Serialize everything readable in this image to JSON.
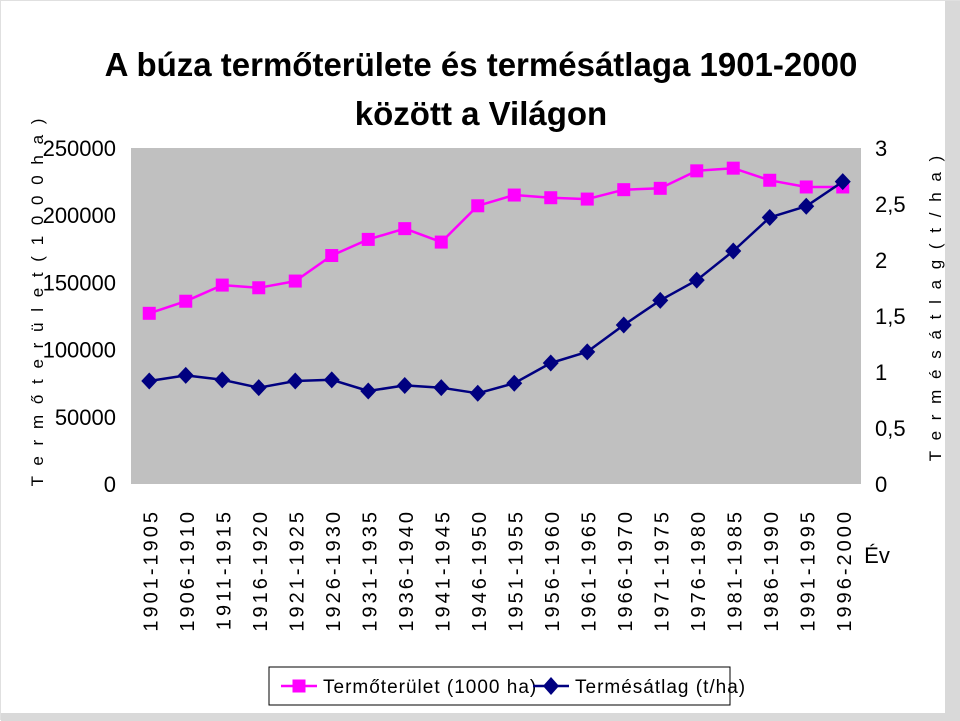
{
  "chart_data": {
    "type": "line",
    "title_line1": "A búza termőterülete és termésátlaga 1901-2000",
    "title_line2": "között a Világon",
    "ylabel_left": "T e r m ő t e r ü l e t   ( 1 0 0 0  h a )",
    "ylabel_right": "T e r m é s á t l a g  ( t / h a )",
    "xlabel": "Év",
    "categories": [
      "1901-1905",
      "1906-1910",
      "1911-1915",
      "1916-1920",
      "1921-1925",
      "1926-1930",
      "1931-1935",
      "1936-1940",
      "1941-1945",
      "1946-1950",
      "1951-1955",
      "1956-1960",
      "1961-1965",
      "1966-1970",
      "1971-1975",
      "1976-1980",
      "1981-1985",
      "1986-1990",
      "1991-1995",
      "1996-2000"
    ],
    "ylim_left": [
      0,
      250000
    ],
    "yticks_left": [
      "0",
      "50000",
      "100000",
      "150000",
      "200000",
      "250000"
    ],
    "ylim_right": [
      0,
      3
    ],
    "yticks_right": [
      "0",
      "0,5",
      "1",
      "1,5",
      "2",
      "2,5",
      "3"
    ],
    "series": [
      {
        "name": "Termőterület (1000 ha)",
        "axis": "left",
        "color": "#ff00ff",
        "marker": "square",
        "values": [
          127000,
          136000,
          148000,
          146000,
          151000,
          170000,
          182000,
          190000,
          180000,
          207000,
          215000,
          213000,
          212000,
          219000,
          220000,
          233000,
          235000,
          226000,
          221000,
          221000
        ]
      },
      {
        "name": "Termésátlag (t/ha)",
        "axis": "right",
        "color": "#000080",
        "marker": "diamond",
        "values": [
          0.92,
          0.97,
          0.93,
          0.86,
          0.92,
          0.93,
          0.83,
          0.88,
          0.86,
          0.81,
          0.9,
          1.08,
          1.18,
          1.42,
          1.64,
          1.82,
          2.08,
          2.38,
          2.48,
          2.7
        ]
      }
    ],
    "legend": {
      "position": "bottom",
      "items": [
        "Termőterület (1000 ha)",
        "Termésátlag (t/ha)"
      ]
    },
    "plot_background": "#c0c0c0",
    "grid": false
  }
}
